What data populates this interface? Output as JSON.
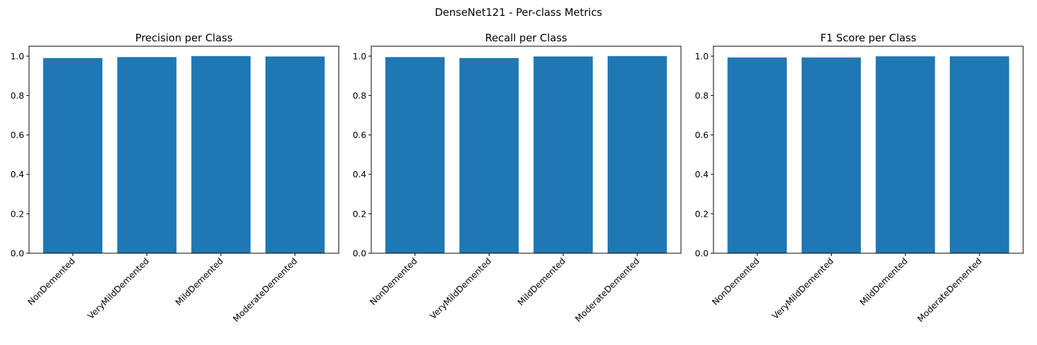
{
  "figure": {
    "suptitle": "DenseNet121 - Per-class Metrics"
  },
  "colors": {
    "bar": "#1f77b4",
    "axis": "#000000",
    "background": "#ffffff"
  },
  "chart_data": [
    {
      "type": "bar",
      "title": "Precision per Class",
      "xlabel": "",
      "ylabel": "",
      "categories": [
        "NonDemented",
        "VeryMildDemented",
        "MildDemented",
        "ModerateDemented"
      ],
      "values": [
        0.99,
        0.995,
        1.0,
        0.998
      ],
      "ylim": [
        0,
        1.05
      ],
      "yticks": [
        "0.0",
        "0.2",
        "0.4",
        "0.6",
        "0.8",
        "1.0"
      ],
      "grid": false,
      "xtick_rotation": 45
    },
    {
      "type": "bar",
      "title": "Recall per Class",
      "xlabel": "",
      "ylabel": "",
      "categories": [
        "NonDemented",
        "VeryMildDemented",
        "MildDemented",
        "ModerateDemented"
      ],
      "values": [
        0.995,
        0.99,
        0.998,
        1.0
      ],
      "ylim": [
        0,
        1.05
      ],
      "yticks": [
        "0.0",
        "0.2",
        "0.4",
        "0.6",
        "0.8",
        "1.0"
      ],
      "grid": false,
      "xtick_rotation": 45
    },
    {
      "type": "bar",
      "title": "F1 Score per Class",
      "xlabel": "",
      "ylabel": "",
      "categories": [
        "NonDemented",
        "VeryMildDemented",
        "MildDemented",
        "ModerateDemented"
      ],
      "values": [
        0.993,
        0.993,
        0.999,
        0.999
      ],
      "ylim": [
        0,
        1.05
      ],
      "yticks": [
        "0.0",
        "0.2",
        "0.4",
        "0.6",
        "0.8",
        "1.0"
      ],
      "grid": false,
      "xtick_rotation": 45
    }
  ]
}
